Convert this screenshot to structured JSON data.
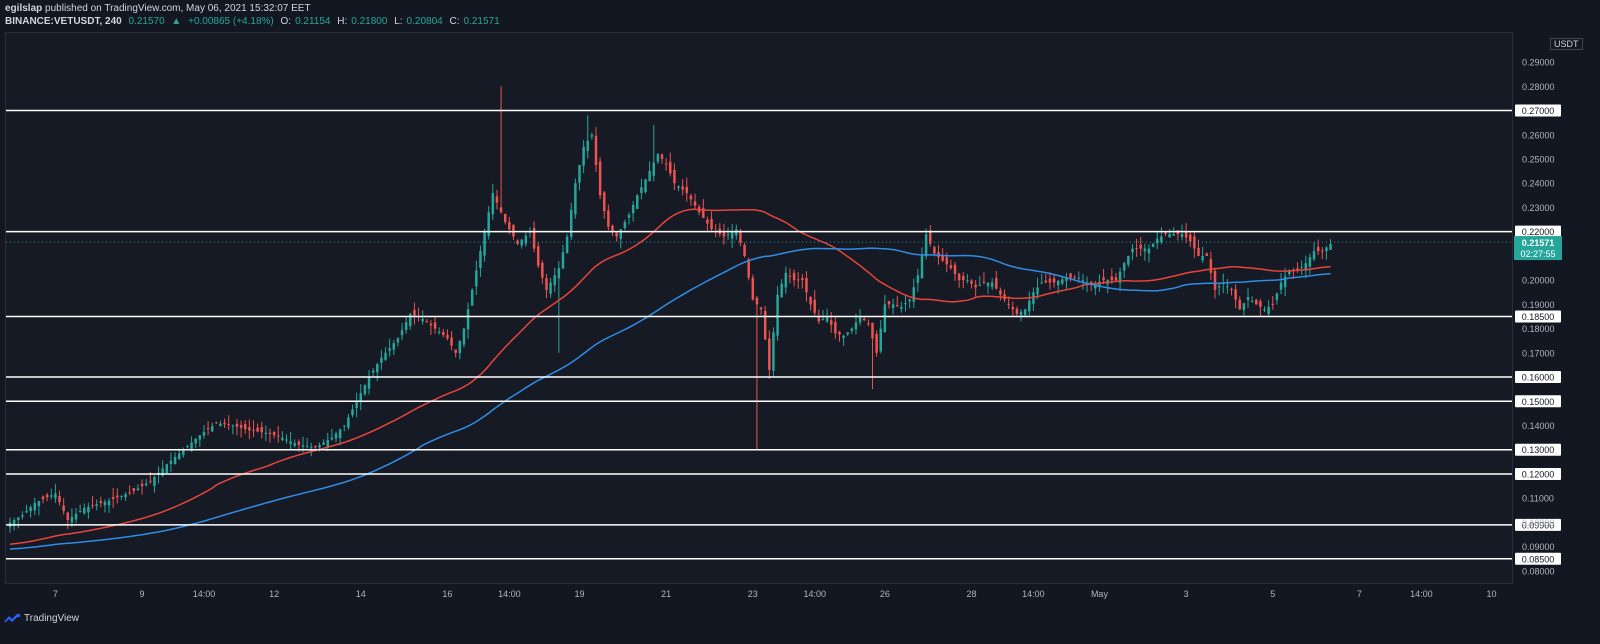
{
  "header": {
    "author": "egilslap",
    "published": "published on TradingView.com, May 06, 2021 15:32:07 EET",
    "symbol": "BINANCE:VETUSDT, 240",
    "last": "0.21570",
    "change": "+0.00865 (+4.18%)",
    "o_label": "O:",
    "o": "0.21154",
    "h_label": "H:",
    "h": "0.21800",
    "l_label": "L:",
    "l": "0.20804",
    "c_label": "C:",
    "c": "0.21571"
  },
  "brand": "TradingView",
  "currency": "USDT",
  "chart_data": {
    "type": "candlestick",
    "ylim": [
      0.075,
      0.302
    ],
    "y_ticks": [
      "0.29000",
      "0.28000",
      "0.27000",
      "0.26000",
      "0.25000",
      "0.24000",
      "0.23000",
      "0.22000",
      "0.21000",
      "0.20000",
      "0.19000",
      "0.18000",
      "0.17000",
      "0.16000",
      "0.15000",
      "0.14000",
      "0.13000",
      "0.12000",
      "0.11000",
      "0.10000",
      "0.09000",
      "0.08000"
    ],
    "x_ticks": [
      {
        "label": "7",
        "i": 11
      },
      {
        "label": "9",
        "i": 32
      },
      {
        "label": "14:00",
        "i": 47
      },
      {
        "label": "12",
        "i": 64
      },
      {
        "label": "14",
        "i": 85
      },
      {
        "label": "16",
        "i": 106
      },
      {
        "label": "14:00",
        "i": 121
      },
      {
        "label": "19",
        "i": 138
      },
      {
        "label": "21",
        "i": 159
      },
      {
        "label": "23",
        "i": 180
      },
      {
        "label": "14:00",
        "i": 195
      },
      {
        "label": "26",
        "i": 212
      },
      {
        "label": "28",
        "i": 233
      },
      {
        "label": "14:00",
        "i": 248
      },
      {
        "label": "May",
        "i": 264
      },
      {
        "label": "3",
        "i": 285
      },
      {
        "label": "5",
        "i": 306
      },
      {
        "label": "7",
        "i": 327
      },
      {
        "label": "14:00",
        "i": 342
      },
      {
        "label": "10",
        "i": 359
      }
    ],
    "h_levels": [
      "0.27000",
      "0.22000",
      "0.18500",
      "0.16000",
      "0.15000",
      "0.13000",
      "0.12000",
      "0.09900",
      "0.08500"
    ],
    "current_price": "0.21571",
    "countdown": "02:27:55",
    "colors": {
      "up": "#26a69a",
      "down": "#ef5350",
      "ma_red": "#e8443a",
      "ma_blue": "#2e8de6",
      "level": "#ffffff"
    },
    "anchors": [
      [
        0,
        0.1
      ],
      [
        3,
        0.103
      ],
      [
        6,
        0.108
      ],
      [
        11,
        0.112
      ],
      [
        14,
        0.101
      ],
      [
        18,
        0.106
      ],
      [
        24,
        0.109
      ],
      [
        30,
        0.113
      ],
      [
        34,
        0.117
      ],
      [
        38,
        0.124
      ],
      [
        42,
        0.13
      ],
      [
        46,
        0.136
      ],
      [
        50,
        0.141
      ],
      [
        54,
        0.14
      ],
      [
        58,
        0.138
      ],
      [
        62,
        0.137
      ],
      [
        66,
        0.135
      ],
      [
        70,
        0.132
      ],
      [
        74,
        0.131
      ],
      [
        78,
        0.135
      ],
      [
        81,
        0.14
      ],
      [
        84,
        0.15
      ],
      [
        87,
        0.16
      ],
      [
        90,
        0.168
      ],
      [
        94,
        0.176
      ],
      [
        97,
        0.186
      ],
      [
        100,
        0.184
      ],
      [
        103,
        0.18
      ],
      [
        106,
        0.176
      ],
      [
        108,
        0.17
      ],
      [
        110,
        0.18
      ],
      [
        112,
        0.196
      ],
      [
        115,
        0.22
      ],
      [
        117,
        0.236
      ],
      [
        120,
        0.224
      ],
      [
        123,
        0.215
      ],
      [
        126,
        0.22
      ],
      [
        128,
        0.206
      ],
      [
        130,
        0.196
      ],
      [
        133,
        0.205
      ],
      [
        135,
        0.218
      ],
      [
        137,
        0.24
      ],
      [
        139,
        0.255
      ],
      [
        141,
        0.26
      ],
      [
        143,
        0.235
      ],
      [
        145,
        0.222
      ],
      [
        147,
        0.218
      ],
      [
        150,
        0.227
      ],
      [
        152,
        0.235
      ],
      [
        155,
        0.245
      ],
      [
        157,
        0.252
      ],
      [
        159,
        0.248
      ],
      [
        161,
        0.24
      ],
      [
        164,
        0.236
      ],
      [
        167,
        0.228
      ],
      [
        170,
        0.221
      ],
      [
        173,
        0.218
      ],
      [
        176,
        0.221
      ],
      [
        178,
        0.21
      ],
      [
        180,
        0.192
      ],
      [
        182,
        0.188
      ],
      [
        184,
        0.163
      ],
      [
        186,
        0.194
      ],
      [
        188,
        0.203
      ],
      [
        190,
        0.2
      ],
      [
        192,
        0.2
      ],
      [
        194,
        0.19
      ],
      [
        196,
        0.183
      ],
      [
        198,
        0.185
      ],
      [
        200,
        0.178
      ],
      [
        202,
        0.177
      ],
      [
        204,
        0.18
      ],
      [
        206,
        0.185
      ],
      [
        208,
        0.182
      ],
      [
        210,
        0.17
      ],
      [
        212,
        0.19
      ],
      [
        214,
        0.19
      ],
      [
        216,
        0.189
      ],
      [
        218,
        0.192
      ],
      [
        220,
        0.202
      ],
      [
        222,
        0.219
      ],
      [
        224,
        0.211
      ],
      [
        226,
        0.208
      ],
      [
        228,
        0.205
      ],
      [
        230,
        0.2
      ],
      [
        232,
        0.2
      ],
      [
        234,
        0.197
      ],
      [
        236,
        0.199
      ],
      [
        238,
        0.199
      ],
      [
        240,
        0.194
      ],
      [
        242,
        0.19
      ],
      [
        244,
        0.186
      ],
      [
        246,
        0.188
      ],
      [
        248,
        0.195
      ],
      [
        250,
        0.199
      ],
      [
        253,
        0.199
      ],
      [
        256,
        0.201
      ],
      [
        259,
        0.201
      ],
      [
        262,
        0.198
      ],
      [
        265,
        0.2
      ],
      [
        268,
        0.2
      ],
      [
        270,
        0.207
      ],
      [
        272,
        0.213
      ],
      [
        274,
        0.213
      ],
      [
        276,
        0.213
      ],
      [
        278,
        0.217
      ],
      [
        280,
        0.219
      ],
      [
        282,
        0.219
      ],
      [
        284,
        0.219
      ],
      [
        286,
        0.216
      ],
      [
        288,
        0.21
      ],
      [
        290,
        0.21
      ],
      [
        292,
        0.196
      ],
      [
        294,
        0.199
      ],
      [
        296,
        0.196
      ],
      [
        298,
        0.188
      ],
      [
        300,
        0.193
      ],
      [
        302,
        0.19
      ],
      [
        304,
        0.188
      ],
      [
        306,
        0.19
      ],
      [
        308,
        0.199
      ],
      [
        310,
        0.204
      ],
      [
        312,
        0.204
      ],
      [
        314,
        0.207
      ],
      [
        316,
        0.212
      ],
      [
        318,
        0.212
      ],
      [
        320,
        0.215
      ]
    ]
  }
}
